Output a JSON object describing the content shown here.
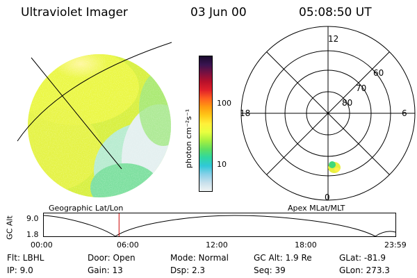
{
  "header": {
    "title": "Ultraviolet Imager",
    "date": "03 Jun 00",
    "time": "05:08:50 UT"
  },
  "colorbar": {
    "unit": "photon cm⁻²s⁻¹",
    "tick_labels": [
      "100",
      "10"
    ],
    "colors": [
      "#1a0a2e",
      "#3a1450",
      "#7a1040",
      "#b8102a",
      "#e0202a",
      "#ff6020",
      "#ff9a10",
      "#ffc818",
      "#fff03a",
      "#e8ff40",
      "#a8f040",
      "#60e060",
      "#30d8a0",
      "#30c8d8",
      "#88d0e8",
      "#c8e0ec",
      "#f0f4f4"
    ]
  },
  "polar_plot": {
    "clock_labels": [
      "12",
      "18",
      "6",
      "0"
    ],
    "lat_labels": [
      "60",
      "70",
      "80"
    ]
  },
  "timeline": {
    "left_label": "Geographic Lat/Lon",
    "right_label": "Apex MLat/MLT",
    "axis_label": "GC Alt",
    "y_ticks": [
      "9.0",
      "1.8"
    ],
    "x_ticks": [
      "00:00",
      "06:00",
      "12:00",
      "18:00",
      "23:59"
    ],
    "cursor_time_fraction": 0.214
  },
  "info": {
    "flt": "Flt: LBHL",
    "ip": "IP:  9.0",
    "door": "Door: Open",
    "gain": "Gain: 13",
    "mode": "Mode: Normal",
    "dsp": "Dsp:    2.3",
    "gcalt": "GC Alt: 1.9 Re",
    "seq": "Seq: 39",
    "glat": "GLat: -81.9",
    "glon": "GLon: 273.3"
  }
}
